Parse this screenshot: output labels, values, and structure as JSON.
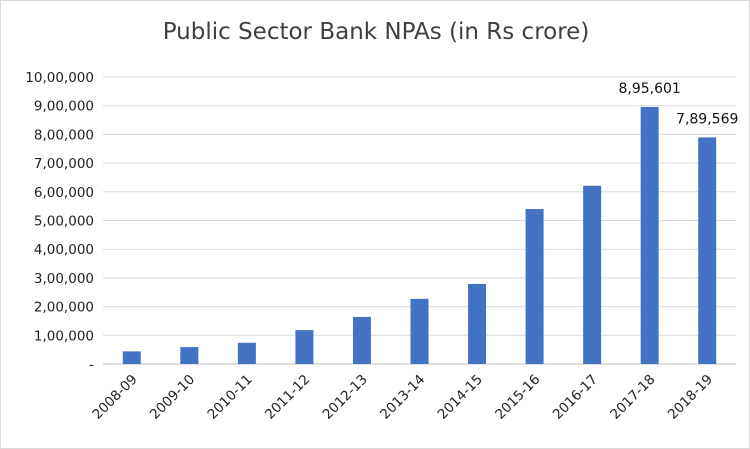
{
  "chart_data": {
    "type": "bar",
    "title": "Public Sector Bank NPAs (in Rs crore)",
    "xlabel": "",
    "ylabel": "",
    "categories": [
      "2008-09",
      "2009-10",
      "2010-11",
      "2011-12",
      "2012-13",
      "2013-14",
      "2014-15",
      "2015-16",
      "2016-17",
      "2017-18",
      "2018-19"
    ],
    "values": [
      44000,
      59000,
      74000,
      118000,
      164000,
      227000,
      279000,
      540000,
      621000,
      895601,
      789569
    ],
    "data_labels": [
      {
        "index": 9,
        "text": "8,95,601"
      },
      {
        "index": 10,
        "text": "7,89,569"
      }
    ],
    "ylim": [
      0,
      1000000
    ],
    "yticks": [
      0,
      100000,
      200000,
      300000,
      400000,
      500000,
      600000,
      700000,
      800000,
      900000,
      1000000
    ],
    "ytick_labels": [
      "-",
      "1,00,000",
      "2,00,000",
      "3,00,000",
      "4,00,000",
      "5,00,000",
      "6,00,000",
      "7,00,000",
      "8,00,000",
      "9,00,000",
      "10,00,000"
    ],
    "grid": true,
    "legend": "none",
    "bar_color": "#4472c4",
    "grid_color": "#d9d9d9"
  }
}
